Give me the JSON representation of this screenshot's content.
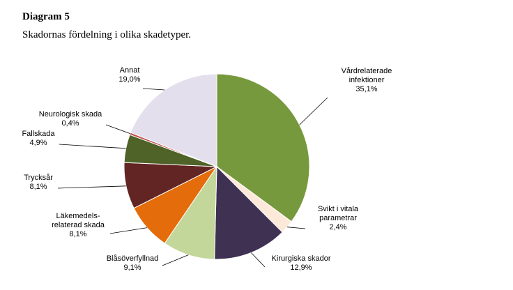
{
  "chart_data": {
    "type": "pie",
    "title": "Diagram 5",
    "subtitle": "Skadornas fördelning i olika skadetyper.",
    "slices": [
      {
        "name": "Vårdrelaterade infektioner",
        "label_lines": [
          "Vårdrelaterade",
          "infektioner"
        ],
        "value": 35.1,
        "value_label": "35,1%",
        "color": "#77993d"
      },
      {
        "name": "Svikt i vitala parametrar",
        "label_lines": [
          "Svikt i vitala",
          "parametrar"
        ],
        "value": 2.4,
        "value_label": "2,4%",
        "color": "#fde9d9"
      },
      {
        "name": "Kirurgiska skador",
        "label_lines": [
          "Kirurgiska skador"
        ],
        "value": 12.9,
        "value_label": "12,9%",
        "color": "#3f3152"
      },
      {
        "name": "Blåsöverfyllnad",
        "label_lines": [
          "Blåsöverfyllnad"
        ],
        "value": 9.1,
        "value_label": "9,1%",
        "color": "#c4d79b"
      },
      {
        "name": "Läkemedelsrelaterad skada",
        "label_lines": [
          "Läkemedels-",
          "relaterad skada"
        ],
        "value": 8.1,
        "value_label": "8,1%",
        "color": "#e46c0a"
      },
      {
        "name": "Trycksår",
        "label_lines": [
          "Trycksår"
        ],
        "value": 8.1,
        "value_label": "8,1%",
        "color": "#632523"
      },
      {
        "name": "Fallskada",
        "label_lines": [
          "Fallskada"
        ],
        "value": 4.9,
        "value_label": "4,9%",
        "color": "#4f6228"
      },
      {
        "name": "Neurologisk skada",
        "label_lines": [
          "Neurologisk skada"
        ],
        "value": 0.4,
        "value_label": "0,4%",
        "color": "#c0504d"
      },
      {
        "name": "Annat",
        "label_lines": [
          "Annat"
        ],
        "value": 19.0,
        "value_label": "19,0%",
        "color": "#e4dfec"
      }
    ],
    "legend": "none"
  }
}
